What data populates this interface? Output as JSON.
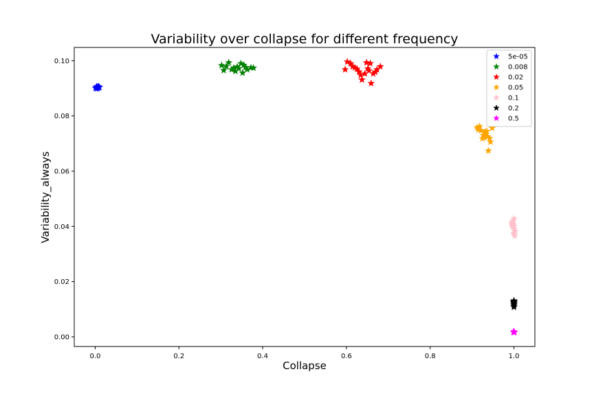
{
  "chart_data": {
    "type": "scatter",
    "title": "Variability over collapse for different frequency",
    "xlabel": "Collapse",
    "ylabel": "Variability_always",
    "xlim": [
      -0.05,
      1.05
    ],
    "ylim": [
      -0.0035,
      0.1048
    ],
    "xticks": [
      "0.0",
      "0.2",
      "0.4",
      "0.6",
      "0.8",
      "1.0"
    ],
    "yticks": [
      "0.00",
      "0.02",
      "0.04",
      "0.06",
      "0.08",
      "0.10"
    ],
    "grid": false,
    "legend_position": "top-right",
    "marker": "star",
    "series": [
      {
        "name": "5e-05",
        "color": "#0000ff",
        "points": [
          [
            0.002,
            0.0901
          ],
          [
            0.004,
            0.0904
          ],
          [
            0.006,
            0.0902
          ],
          [
            0.003,
            0.0906
          ],
          [
            0.008,
            0.0905
          ],
          [
            0.005,
            0.0899
          ],
          [
            0.009,
            0.0903
          ],
          [
            0.001,
            0.09
          ],
          [
            0.007,
            0.0907
          ],
          [
            0.01,
            0.0904
          ]
        ]
      },
      {
        "name": "0.008",
        "color": "#008000",
        "points": [
          [
            0.302,
            0.0983
          ],
          [
            0.307,
            0.0965
          ],
          [
            0.313,
            0.0979
          ],
          [
            0.319,
            0.0993
          ],
          [
            0.326,
            0.0968
          ],
          [
            0.331,
            0.0974
          ],
          [
            0.335,
            0.0962
          ],
          [
            0.339,
            0.0978
          ],
          [
            0.343,
            0.0972
          ],
          [
            0.348,
            0.099
          ],
          [
            0.352,
            0.0956
          ],
          [
            0.355,
            0.0984
          ],
          [
            0.359,
            0.0976
          ],
          [
            0.363,
            0.0968
          ],
          [
            0.372,
            0.0975
          ],
          [
            0.378,
            0.0974
          ]
        ]
      },
      {
        "name": "0.02",
        "color": "#ff0000",
        "points": [
          [
            0.597,
            0.0968
          ],
          [
            0.602,
            0.0996
          ],
          [
            0.61,
            0.099
          ],
          [
            0.615,
            0.0979
          ],
          [
            0.62,
            0.0975
          ],
          [
            0.625,
            0.097
          ],
          [
            0.63,
            0.096
          ],
          [
            0.634,
            0.0948
          ],
          [
            0.637,
            0.0931
          ],
          [
            0.644,
            0.0953
          ],
          [
            0.648,
            0.0993
          ],
          [
            0.651,
            0.0971
          ],
          [
            0.654,
            0.0964
          ],
          [
            0.657,
            0.099
          ],
          [
            0.659,
            0.0918
          ],
          [
            0.664,
            0.0953
          ],
          [
            0.669,
            0.0959
          ],
          [
            0.673,
            0.0968
          ],
          [
            0.681,
            0.0979
          ]
        ]
      },
      {
        "name": "0.05",
        "color": "#ffa500",
        "points": [
          [
            0.912,
            0.0758
          ],
          [
            0.915,
            0.075
          ],
          [
            0.918,
            0.0762
          ],
          [
            0.922,
            0.0747
          ],
          [
            0.925,
            0.0718
          ],
          [
            0.927,
            0.073
          ],
          [
            0.929,
            0.0722
          ],
          [
            0.931,
            0.0742
          ],
          [
            0.933,
            0.0735
          ],
          [
            0.935,
            0.0745
          ],
          [
            0.937,
            0.0725
          ],
          [
            0.939,
            0.0674
          ],
          [
            0.942,
            0.0719
          ],
          [
            0.944,
            0.0706
          ],
          [
            0.948,
            0.0756
          ]
        ]
      },
      {
        "name": "0.1",
        "color": "#ffc0cb",
        "points": [
          [
            0.994,
            0.0413
          ],
          [
            0.996,
            0.0405
          ],
          [
            0.997,
            0.0398
          ],
          [
            0.998,
            0.042
          ],
          [
            0.999,
            0.0375
          ],
          [
            1.0,
            0.0428
          ],
          [
            1.001,
            0.039
          ],
          [
            1.002,
            0.0366
          ],
          [
            1.003,
            0.0382
          ],
          [
            0.998,
            0.041
          ],
          [
            1.0,
            0.0402
          ]
        ]
      },
      {
        "name": "0.2",
        "color": "#000000",
        "points": [
          [
            1.0,
            0.0131
          ],
          [
            1.0,
            0.0126
          ],
          [
            1.0,
            0.0121
          ],
          [
            1.0,
            0.0117
          ],
          [
            1.0,
            0.0112
          ],
          [
            1.0,
            0.0108
          ],
          [
            1.0,
            0.0124
          ],
          [
            1.0,
            0.0129
          ]
        ]
      },
      {
        "name": "0.5",
        "color": "#ff00ff",
        "points": [
          [
            1.0,
            0.0018
          ],
          [
            1.001,
            0.0017
          ],
          [
            0.999,
            0.0019
          ],
          [
            1.0,
            0.0016
          ]
        ]
      }
    ]
  }
}
